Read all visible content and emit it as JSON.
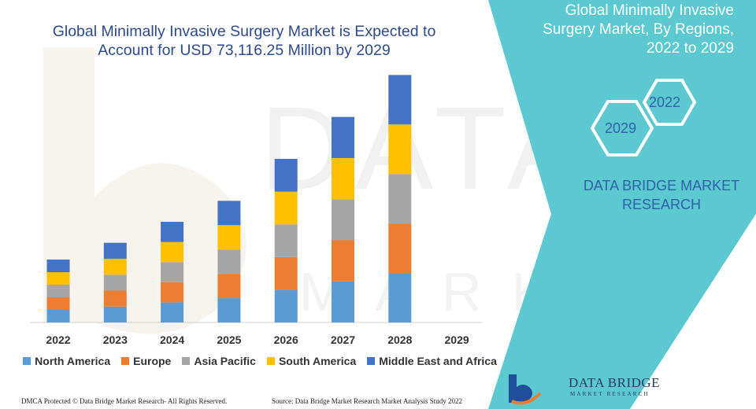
{
  "colors": {
    "north_america": "#5b9bd5",
    "europe": "#ed7d31",
    "asia_pacific": "#a5a5a5",
    "south_america": "#ffc000",
    "mea": "#4472c4",
    "panel": "#5cc8d0",
    "title": "#2e4a8a",
    "brand": "#2d63a8"
  },
  "panel": {
    "title_line1": "Global Minimally Invasive",
    "title_line2": "Surgery Market, By Regions,",
    "title_line3": "2022 to 2029",
    "hex_2022": "2022",
    "hex_2029": "2029",
    "brand_line1": "DATA BRIDGE MARKET",
    "brand_line2": "RESEARCH"
  },
  "footer": {
    "left": "DMCA Protected © Data Bridge Market Research- All Rights Reserved.",
    "right": "Source: Data Bridge Market Research Market Analysis Study 2022"
  },
  "logo": {
    "name": "DATA BRIDGE",
    "subtitle": "MARKET RESEARCH",
    "icon": "data-bridge-logo-icon"
  },
  "chart_data": {
    "type": "bar",
    "stacked": true,
    "title_line1": "Global Minimally Invasive Surgery Market is Expected to",
    "title_line2": "Account for USD 73,116.25 Million by 2029",
    "categories": [
      "2022",
      "2023",
      "2024",
      "2025",
      "2026",
      "2027",
      "2028",
      "2029"
    ],
    "ylim": [
      0,
      300
    ],
    "grid": false,
    "legend_position": "bottom",
    "series": [
      {
        "name": "North America",
        "color_key": "north_america",
        "values": [
          15,
          19,
          24,
          29,
          39,
          49,
          59,
          0
        ]
      },
      {
        "name": "Europe",
        "color_key": "europe",
        "values": [
          15,
          19,
          24,
          29,
          39,
          49,
          59,
          0
        ]
      },
      {
        "name": "Asia Pacific",
        "color_key": "asia_pacific",
        "values": [
          15,
          19,
          24,
          29,
          39,
          49,
          59,
          0
        ]
      },
      {
        "name": "South America",
        "color_key": "south_america",
        "values": [
          15,
          19,
          24,
          29,
          39,
          49,
          59,
          0
        ]
      },
      {
        "name": "Middle East and Africa",
        "color_key": "mea",
        "values": [
          15,
          19,
          24,
          29,
          39,
          49,
          59,
          0
        ]
      }
    ]
  }
}
